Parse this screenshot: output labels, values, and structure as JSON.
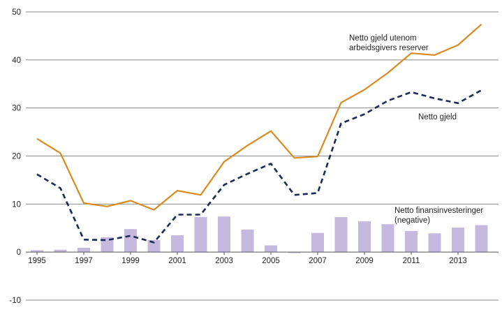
{
  "chart_data": {
    "type": "bar+line",
    "title": "",
    "xlabel": "",
    "ylabel": "",
    "ylim": [
      -10,
      50
    ],
    "yticks": [
      -10,
      0,
      10,
      20,
      30,
      40,
      50
    ],
    "grid": "horizontal",
    "x": [
      1995,
      1996,
      1997,
      1998,
      1999,
      2000,
      2001,
      2002,
      2003,
      2004,
      2005,
      2006,
      2007,
      2008,
      2009,
      2010,
      2011,
      2012,
      2013,
      2014
    ],
    "xticks": [
      "1995",
      "1997",
      "1999",
      "2001",
      "2003",
      "2005",
      "2007",
      "2009",
      "2011",
      "2013"
    ],
    "series": [
      {
        "name": "Netto finansinvesteringer (negative)",
        "type": "bar",
        "color": "#c6b9e0",
        "values": [
          0.4,
          0.5,
          0.9,
          3.1,
          4.8,
          2.5,
          3.5,
          7.3,
          7.4,
          4.7,
          1.4,
          -0.2,
          4.0,
          7.3,
          6.4,
          5.8,
          4.4,
          3.9,
          5.1,
          5.6
        ]
      },
      {
        "name": "Netto gjeld utenom arbeidsgivers reserver",
        "type": "line",
        "style": "solid",
        "color": "#d98b20",
        "values": [
          23.6,
          20.6,
          10.2,
          9.5,
          10.7,
          8.8,
          12.8,
          11.9,
          18.8,
          22.2,
          25.2,
          19.6,
          19.9,
          31.1,
          33.8,
          37.3,
          41.4,
          41.0,
          43.1,
          47.4
        ]
      },
      {
        "name": "Netto gjeld",
        "type": "line",
        "style": "dashed",
        "color": "#1c2a55",
        "values": [
          16.2,
          13.3,
          2.6,
          2.5,
          3.4,
          2.0,
          7.8,
          7.8,
          14.0,
          16.3,
          18.4,
          11.9,
          12.3,
          26.8,
          28.7,
          31.5,
          33.3,
          32.0,
          31.0,
          33.7
        ]
      }
    ],
    "annotations": {
      "orange_line_label": [
        "Netto gjeld utenom",
        "arbeidsgivers reserver"
      ],
      "dashed_line_label": [
        "Netto gjeld"
      ],
      "bar_label": [
        "Netto finansinvesteringer",
        "(negative)"
      ]
    }
  }
}
